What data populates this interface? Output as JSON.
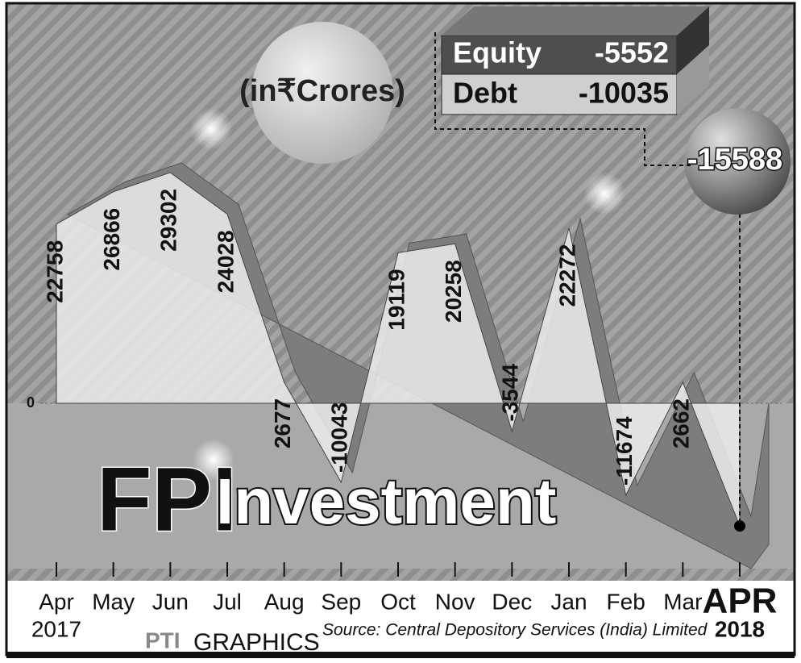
{
  "chart_data": {
    "type": "area",
    "title_parts": [
      "FPI",
      "Investment"
    ],
    "unit": "(in₹Crores)",
    "categories": [
      "Apr",
      "May",
      "Jun",
      "Jul",
      "Aug",
      "Sep",
      "Oct",
      "Nov",
      "Dec",
      "Jan",
      "Feb",
      "Mar",
      "APR"
    ],
    "category_years": [
      "2017",
      null,
      null,
      null,
      null,
      null,
      null,
      null,
      null,
      null,
      null,
      null,
      "2018"
    ],
    "values": [
      22758,
      26866,
      29302,
      24028,
      2677,
      -10043,
      19119,
      20258,
      -3544,
      22272,
      -11674,
      2662,
      -15588
    ],
    "breakdown": [
      {
        "label": "Equity",
        "value": -5552
      },
      {
        "label": "Debt",
        "value": -10035
      }
    ],
    "ylim": [
      -21000,
      42000
    ],
    "yticks": [
      0
    ],
    "color": "#ececec",
    "negative_color": "#a9a9a9",
    "source": "Source: Central Depository Services (India) Limited",
    "credit_logo": "PTI",
    "credit": "GRAPHICS"
  }
}
